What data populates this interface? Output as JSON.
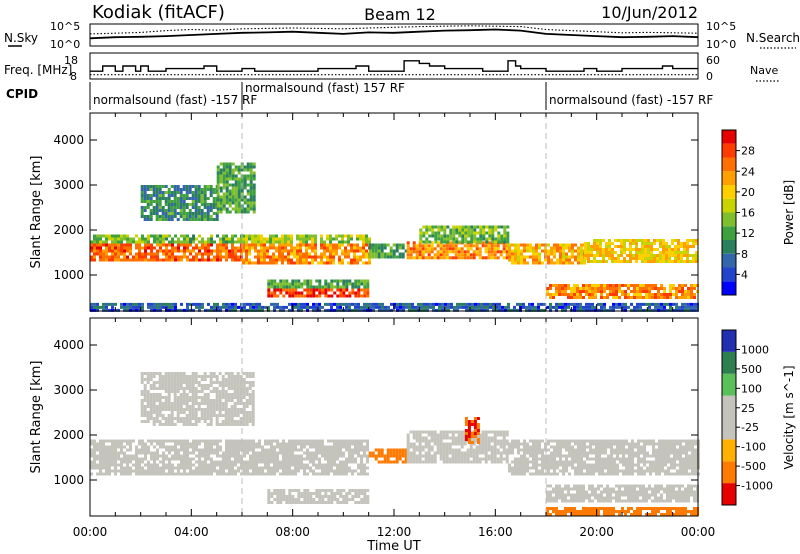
{
  "header": {
    "station": "Kodiak (fitACF)",
    "beam": "Beam 12",
    "date": "10/Jun/2012"
  },
  "chart_data": [
    {
      "type": "line",
      "panel": "noise",
      "left_label": "N.Sky",
      "right_label": "N.Search",
      "left_ticks": [
        "10^5",
        "10^0"
      ],
      "right_ticks": [
        "10^5",
        "10^0"
      ],
      "xlim": [
        0,
        24
      ],
      "series": [
        {
          "name": "N.Sky",
          "style": "solid",
          "x": [
            0,
            1,
            2,
            3,
            4,
            5,
            6,
            7,
            8,
            9,
            10,
            11,
            12,
            13,
            14,
            15,
            16,
            17,
            18,
            19,
            20,
            21,
            22,
            23,
            24
          ],
          "values": [
            0.35,
            0.4,
            0.42,
            0.45,
            0.5,
            0.55,
            0.6,
            0.62,
            0.65,
            0.6,
            0.55,
            0.62,
            0.6,
            0.65,
            0.7,
            0.72,
            0.75,
            0.7,
            0.55,
            0.5,
            0.45,
            0.4,
            0.42,
            0.45,
            0.4
          ]
        },
        {
          "name": "N.Search",
          "style": "dotted",
          "x": [
            0,
            1,
            2,
            3,
            4,
            5,
            6,
            7,
            8,
            9,
            10,
            11,
            12,
            13,
            14,
            15,
            16,
            17,
            18,
            19,
            20,
            21,
            22,
            23,
            24
          ],
          "values": [
            0.55,
            0.58,
            0.62,
            0.7,
            0.75,
            0.72,
            0.78,
            0.8,
            0.82,
            0.8,
            0.78,
            0.82,
            0.85,
            0.88,
            0.9,
            0.92,
            0.9,
            0.88,
            0.75,
            0.7,
            0.65,
            0.6,
            0.62,
            0.6,
            0.58
          ]
        }
      ]
    },
    {
      "type": "line",
      "panel": "frequency",
      "left_label": "Freq. [MHz]",
      "right_label": "Nave",
      "left_ticks": [
        "18",
        "8"
      ],
      "right_ticks": [
        "60",
        "0"
      ],
      "xlim": [
        0,
        24
      ],
      "series": [
        {
          "name": "Freq",
          "style": "solid",
          "x": [
            0,
            0.5,
            0.5,
            1,
            1,
            1.3,
            1.3,
            1.8,
            1.8,
            2,
            2,
            2.3,
            2.3,
            3,
            3,
            4.5,
            4.5,
            5,
            5,
            6,
            6,
            6.5,
            6.5,
            9,
            9,
            10.5,
            10.5,
            11,
            11,
            12.4,
            12.4,
            13,
            13,
            13.4,
            13.4,
            14,
            14,
            15.5,
            15.5,
            16.5,
            16.5,
            16.8,
            16.8,
            17,
            17,
            18,
            18,
            19.5,
            19.5,
            20,
            20,
            21,
            21,
            22.6,
            22.6,
            23,
            23,
            24
          ],
          "values": [
            11,
            11,
            13,
            13,
            11,
            11,
            13,
            13,
            11,
            11,
            13,
            13,
            11,
            11,
            12,
            12,
            13,
            13,
            11,
            11,
            12,
            12,
            11,
            11,
            12,
            12,
            13,
            13,
            11,
            11,
            15,
            15,
            14,
            14,
            13,
            13,
            12,
            12,
            11,
            11,
            15,
            15,
            13,
            13,
            12,
            12,
            11,
            11,
            12,
            12,
            11,
            11,
            12,
            12,
            13,
            13,
            12,
            12
          ]
        },
        {
          "name": "Nave",
          "style": "dotted",
          "x": [
            0,
            24
          ],
          "values": [
            10,
            10
          ]
        }
      ]
    },
    {
      "type": "table",
      "panel": "cpid",
      "label": "CPID",
      "segments": [
        {
          "start": 0,
          "end": 6,
          "text": "normalsound (fast) -157 RF"
        },
        {
          "start": 6,
          "end": 18,
          "text": "normalsound (fast) 157 RF"
        },
        {
          "start": 18,
          "end": 24,
          "text": "normalsound (fast) -157 RF"
        }
      ]
    },
    {
      "type": "heatmap",
      "panel": "power",
      "ylabel": "Slant Range [km]",
      "ylim": [
        200,
        4600
      ],
      "yticks": [
        1000,
        2000,
        3000,
        4000
      ],
      "xlim": [
        0,
        24
      ],
      "colorbar": {
        "label": "Power [dB]",
        "ticks": [
          "4",
          "8",
          "12",
          "16",
          "20",
          "24",
          "28"
        ],
        "range": [
          0,
          32
        ]
      },
      "regions": [
        {
          "t0": 0.0,
          "t1": 6.0,
          "r0": 1300,
          "r1": 1700,
          "value": 26
        },
        {
          "t0": 0.0,
          "t1": 6.0,
          "r0": 1700,
          "r1": 1900,
          "value": 14
        },
        {
          "t0": 6.0,
          "t1": 11.0,
          "r0": 1250,
          "r1": 1700,
          "value": 24
        },
        {
          "t0": 6.0,
          "t1": 11.0,
          "r0": 1700,
          "r1": 1900,
          "value": 16
        },
        {
          "t0": 7.0,
          "t1": 11.0,
          "r0": 500,
          "r1": 700,
          "value": 28
        },
        {
          "t0": 7.0,
          "t1": 11.0,
          "r0": 700,
          "r1": 900,
          "value": 12
        },
        {
          "t0": 2.0,
          "t1": 5.0,
          "r0": 2200,
          "r1": 3000,
          "value": 10
        },
        {
          "t0": 5.0,
          "t1": 6.5,
          "r0": 2400,
          "r1": 3500,
          "value": 12
        },
        {
          "t0": 11.0,
          "t1": 12.5,
          "r0": 1400,
          "r1": 1700,
          "value": 12
        },
        {
          "t0": 12.5,
          "t1": 16.5,
          "r0": 1400,
          "r1": 1750,
          "value": 24
        },
        {
          "t0": 13.0,
          "t1": 16.5,
          "r0": 1750,
          "r1": 2100,
          "value": 14
        },
        {
          "t0": 16.5,
          "t1": 19.5,
          "r0": 1250,
          "r1": 1700,
          "value": 22
        },
        {
          "t0": 19.5,
          "t1": 24.0,
          "r0": 1300,
          "r1": 1800,
          "value": 20
        },
        {
          "t0": 18.0,
          "t1": 24.0,
          "r0": 500,
          "r1": 800,
          "value": 24
        },
        {
          "t0": 0.0,
          "t1": 24.0,
          "r0": 220,
          "r1": 380,
          "value": 6
        }
      ]
    },
    {
      "type": "heatmap",
      "panel": "velocity",
      "ylabel": "Slant Range [km]",
      "xlabel": "Time UT",
      "ylim": [
        200,
        4600
      ],
      "yticks": [
        1000,
        2000,
        3000,
        4000
      ],
      "xlim": [
        0,
        24
      ],
      "xticks": [
        "00:00",
        "04:00",
        "08:00",
        "12:00",
        "16:00",
        "20:00",
        "00:00"
      ],
      "colorbar": {
        "label": "Velocity [m s^-1]",
        "ticks": [
          "1000",
          "500",
          "100",
          "25",
          "-25",
          "-100",
          "-500",
          "-1000"
        ]
      },
      "regions": [
        {
          "t0": 0.0,
          "t1": 11.0,
          "r0": 1100,
          "r1": 1900,
          "value": 0
        },
        {
          "t0": 11.0,
          "t1": 12.5,
          "r0": 1400,
          "r1": 1700,
          "value": -400
        },
        {
          "t0": 12.5,
          "t1": 16.5,
          "r0": 1400,
          "r1": 2100,
          "value": 0
        },
        {
          "t0": 14.8,
          "t1": 15.3,
          "r0": 1800,
          "r1": 2400,
          "value": -500
        },
        {
          "t0": 16.5,
          "t1": 24.0,
          "r0": 1100,
          "r1": 1900,
          "value": 0
        },
        {
          "t0": 18.0,
          "t1": 24.0,
          "r0": 500,
          "r1": 900,
          "value": 0
        },
        {
          "t0": 7.0,
          "t1": 11.0,
          "r0": 500,
          "r1": 800,
          "value": 0
        },
        {
          "t0": 2.0,
          "t1": 6.5,
          "r0": 2200,
          "r1": 3400,
          "value": 0
        },
        {
          "t0": 18.0,
          "t1": 24.0,
          "r0": 220,
          "r1": 400,
          "value": -200
        }
      ]
    }
  ]
}
